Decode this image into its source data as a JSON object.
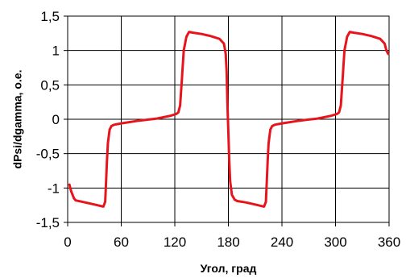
{
  "chart_data": {
    "type": "line",
    "xlabel": "Угол, град",
    "ylabel": "dPsi/dgamma, о.е.",
    "xlim": [
      0,
      360
    ],
    "ylim": [
      -1.5,
      1.5
    ],
    "x_ticks": [
      0,
      60,
      120,
      180,
      240,
      300,
      360
    ],
    "x_tick_labels": [
      "0",
      "60",
      "120",
      "180",
      "240",
      "300",
      "360"
    ],
    "y_ticks": [
      1.5,
      1,
      0.5,
      0,
      -0.5,
      -1,
      -1.5
    ],
    "y_tick_labels": [
      "1,5",
      "1",
      "0,5",
      "0",
      "-0,5",
      "-1",
      "-1,5"
    ],
    "grid": true,
    "series": [
      {
        "color": "#e8141c",
        "x": [
          2,
          4,
          7,
          9,
          20,
          30,
          40,
          42,
          44,
          45,
          47,
          49,
          52,
          60,
          80,
          100,
          115,
          120,
          122,
          124,
          126,
          128,
          130,
          133,
          136,
          140,
          150,
          160,
          170,
          175,
          177,
          178,
          179,
          180,
          181,
          182,
          184,
          187,
          190,
          200,
          210,
          220,
          222,
          224,
          225,
          227,
          229,
          232,
          240,
          260,
          280,
          295,
          300,
          302,
          304,
          306,
          308,
          310,
          313,
          316,
          320,
          330,
          340,
          350,
          355,
          357,
          359
        ],
        "y": [
          -0.95,
          -1.05,
          -1.15,
          -1.18,
          -1.21,
          -1.24,
          -1.27,
          -1.2,
          -0.6,
          -0.35,
          -0.15,
          -0.1,
          -0.08,
          -0.06,
          -0.02,
          0.01,
          0.05,
          0.07,
          0.08,
          0.1,
          0.2,
          0.6,
          1.0,
          1.2,
          1.27,
          1.26,
          1.24,
          1.21,
          1.17,
          1.1,
          0.95,
          0.7,
          0.2,
          -0.2,
          -0.6,
          -0.9,
          -1.1,
          -1.17,
          -1.19,
          -1.21,
          -1.24,
          -1.27,
          -1.2,
          -0.6,
          -0.35,
          -0.15,
          -0.1,
          -0.08,
          -0.06,
          -0.02,
          0.01,
          0.05,
          0.07,
          0.08,
          0.1,
          0.2,
          0.6,
          1.0,
          1.2,
          1.27,
          1.26,
          1.24,
          1.21,
          1.17,
          1.1,
          1.0,
          0.95
        ]
      }
    ]
  }
}
